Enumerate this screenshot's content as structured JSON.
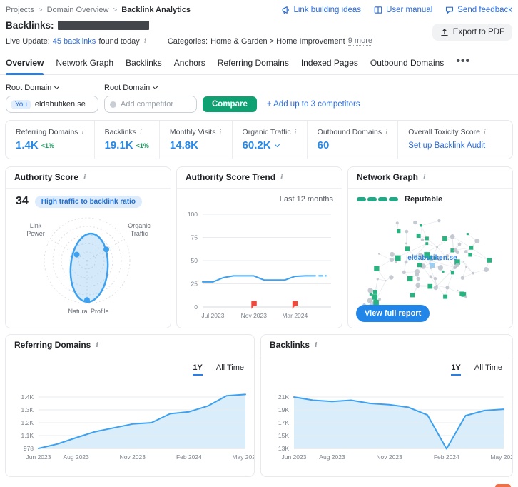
{
  "header": {
    "breadcrumb": [
      "Projects",
      "Domain Overview",
      "Backlink Analytics"
    ],
    "links": [
      {
        "label": "Link building ideas",
        "icon": "megaphone-icon"
      },
      {
        "label": "User manual",
        "icon": "book-icon"
      },
      {
        "label": "Send feedback",
        "icon": "feedback-bubble-icon"
      }
    ],
    "export_pdf": "Export to PDF",
    "title": "Backlinks:",
    "live_update": {
      "label": "Live Update:",
      "link": "45 backlinks",
      "suffix": "found today"
    },
    "categories": {
      "label": "Categories:",
      "value": "Home & Garden > Home Improvement",
      "more": "9 more"
    }
  },
  "icons": {
    "info": "i"
  },
  "tabs": [
    {
      "label": "Overview",
      "active": true
    },
    {
      "label": "Network Graph",
      "active": false
    },
    {
      "label": "Backlinks",
      "active": false
    },
    {
      "label": "Anchors",
      "active": false
    },
    {
      "label": "Referring Domains",
      "active": false
    },
    {
      "label": "Indexed Pages",
      "active": false
    },
    {
      "label": "Outbound Domains",
      "active": false
    }
  ],
  "tabs_more": "•••",
  "compare_bar": {
    "root_domain_label": "Root Domain",
    "you_badge": "You",
    "you_domain": "eldabutiken.se",
    "competitor_placeholder": "Add competitor",
    "compare_button": "Compare",
    "add_competitors_link": "+ Add up to 3 competitors"
  },
  "metrics": [
    {
      "label": "Referring Domains",
      "value": "1.4K",
      "delta": "<1%"
    },
    {
      "label": "Backlinks",
      "value": "19.1K",
      "delta": "<1%"
    },
    {
      "label": "Monthly Visits",
      "value": "14.8K"
    },
    {
      "label": "Organic Traffic",
      "value": "60.2K",
      "chevron": true
    },
    {
      "label": "Outbound Domains",
      "value": "60"
    },
    {
      "label": "Overall Toxicity Score",
      "link": "Set up Backlink Audit"
    }
  ],
  "cards": {
    "authority_score": {
      "title": "Authority Score",
      "score": "34",
      "badge": "High traffic to backlink ratio"
    },
    "trend": {
      "title": "Authority Score Trend",
      "range_label": "Last 12 months"
    },
    "network": {
      "title": "Network Graph",
      "legend": "Reputable",
      "segments": 4,
      "center_label": "eldabutiken.se",
      "button": "View full report"
    },
    "referring": {
      "title": "Referring Domains"
    },
    "backlinks": {
      "title": "Backlinks"
    },
    "time_toggle": {
      "one_year": "1Y",
      "all_time": "All Time"
    }
  },
  "colors": {
    "link_blue": "#2b6cd9",
    "metric_blue": "#2789e8",
    "chart_blue": "#3da1ef",
    "chart_fill": "#daedfb",
    "green": "#10a173",
    "node_green": "#28b381",
    "flag_red": "#ee4b3e",
    "badge_bg": "#dcecfc"
  },
  "chart_data": [
    {
      "id": "authority_score_trend",
      "type": "line",
      "title": "Authority Score Trend",
      "range_label": "Last 12 months",
      "x": [
        "Jun 2023",
        "Jul 2023",
        "Aug 2023",
        "Sep 2023",
        "Oct 2023",
        "Nov 2023",
        "Dec 2023",
        "Jan 2024",
        "Feb 2024",
        "Mar 2024",
        "Apr 2024",
        "May 2024"
      ],
      "values": [
        27,
        27,
        31.5,
        33.5,
        33.5,
        33.5,
        29,
        29,
        29,
        33,
        33.5,
        33.5
      ],
      "ylim": [
        0,
        100
      ],
      "ytick_values": [
        0,
        25,
        50,
        75,
        100
      ],
      "ytick_labels": [
        "0",
        "25",
        "50",
        "75",
        "100"
      ],
      "xtick_indices": [
        1,
        5,
        9
      ],
      "xtick_labels": [
        "Jul 2023",
        "Nov 2023",
        "Mar 2024"
      ],
      "flag_indices": [
        5,
        9
      ],
      "grid": true,
      "legend_position": "none"
    },
    {
      "id": "referring_domains",
      "type": "area",
      "title": "Referring Domains",
      "x": [
        "Jun 2023",
        "Jul 2023",
        "Aug 2023",
        "Sep 2023",
        "Oct 2023",
        "Nov 2023",
        "Dec 2023",
        "Jan 2024",
        "Feb 2024",
        "Mar 2024",
        "Apr 2024",
        "May 2024"
      ],
      "values": [
        978,
        1020,
        1080,
        1130,
        1160,
        1190,
        1200,
        1270,
        1285,
        1330,
        1410,
        1420
      ],
      "ytick_values": [
        978,
        1100,
        1200,
        1300,
        1400
      ],
      "ytick_labels": [
        "978",
        "1.1K",
        "1.2K",
        "1.3K",
        "1.4K"
      ],
      "xtick_indices": [
        0,
        2,
        5,
        8,
        11
      ],
      "xtick_labels": [
        "Jun 2023",
        "Aug 2023",
        "Nov 2023",
        "Feb 2024",
        "May 2024"
      ],
      "range_selected": "1Y",
      "grid": true
    },
    {
      "id": "backlinks",
      "type": "area",
      "title": "Backlinks",
      "x": [
        "Jun 2023",
        "Jul 2023",
        "Aug 2023",
        "Sep 2023",
        "Oct 2023",
        "Nov 2023",
        "Dec 2023",
        "Jan 2024",
        "Feb 2024",
        "Mar 2024",
        "Apr 2024",
        "May 2024"
      ],
      "values": [
        21000,
        20500,
        20300,
        20500,
        20000,
        19800,
        19400,
        18200,
        12950,
        18100,
        18900,
        19100
      ],
      "ytick_values": [
        13000,
        15000,
        17000,
        19000,
        21000
      ],
      "ytick_labels": [
        "13K",
        "15K",
        "17K",
        "19K",
        "21K"
      ],
      "xtick_indices": [
        0,
        2,
        5,
        8,
        11
      ],
      "xtick_labels": [
        "Jun 2023",
        "Aug 2023",
        "Nov 2023",
        "Feb 2024",
        "May 2024"
      ],
      "range_selected": "1Y",
      "grid": true
    },
    {
      "id": "authority_radar",
      "type": "radar",
      "axes": [
        [
          "Link",
          "Power"
        ],
        [
          "Organic",
          "Traffic"
        ],
        [
          "Natural Profile"
        ]
      ],
      "values": [
        0.28,
        0.52,
        0.92
      ],
      "score": 34
    }
  ]
}
